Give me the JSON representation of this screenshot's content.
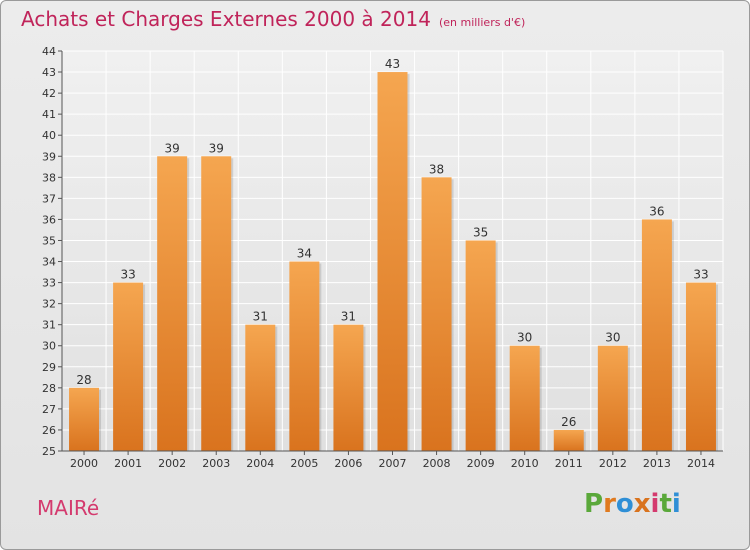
{
  "header": {
    "title": "Achats et Charges Externes 2000 à 2014",
    "subtitle": "(en milliers d'€)"
  },
  "footer": {
    "city": "MAIRé",
    "logo_text": "Proxiti"
  },
  "colors": {
    "bar_top": "#f5a650",
    "bar_bottom": "#d9731e",
    "title": "#c0245a",
    "city": "#d43a6e",
    "grid": "#ffffff",
    "logo": [
      "#5aa83a",
      "#e07a1f",
      "#2f8fd6",
      "#d9731e",
      "#d43a6e",
      "#5aa83a",
      "#2f8fd6"
    ]
  },
  "chart_data": {
    "type": "bar",
    "categories": [
      "2000",
      "2001",
      "2002",
      "2003",
      "2004",
      "2005",
      "2006",
      "2007",
      "2008",
      "2009",
      "2010",
      "2011",
      "2012",
      "2013",
      "2014"
    ],
    "values": [
      28,
      33,
      39,
      39,
      31,
      34,
      31,
      43,
      38,
      35,
      30,
      26,
      30,
      36,
      33
    ],
    "ylim": [
      25,
      44
    ],
    "yticks": [
      25,
      26,
      27,
      28,
      29,
      30,
      31,
      32,
      33,
      34,
      35,
      36,
      37,
      38,
      39,
      40,
      41,
      42,
      43,
      44
    ],
    "grid": true,
    "data_labels": true
  }
}
